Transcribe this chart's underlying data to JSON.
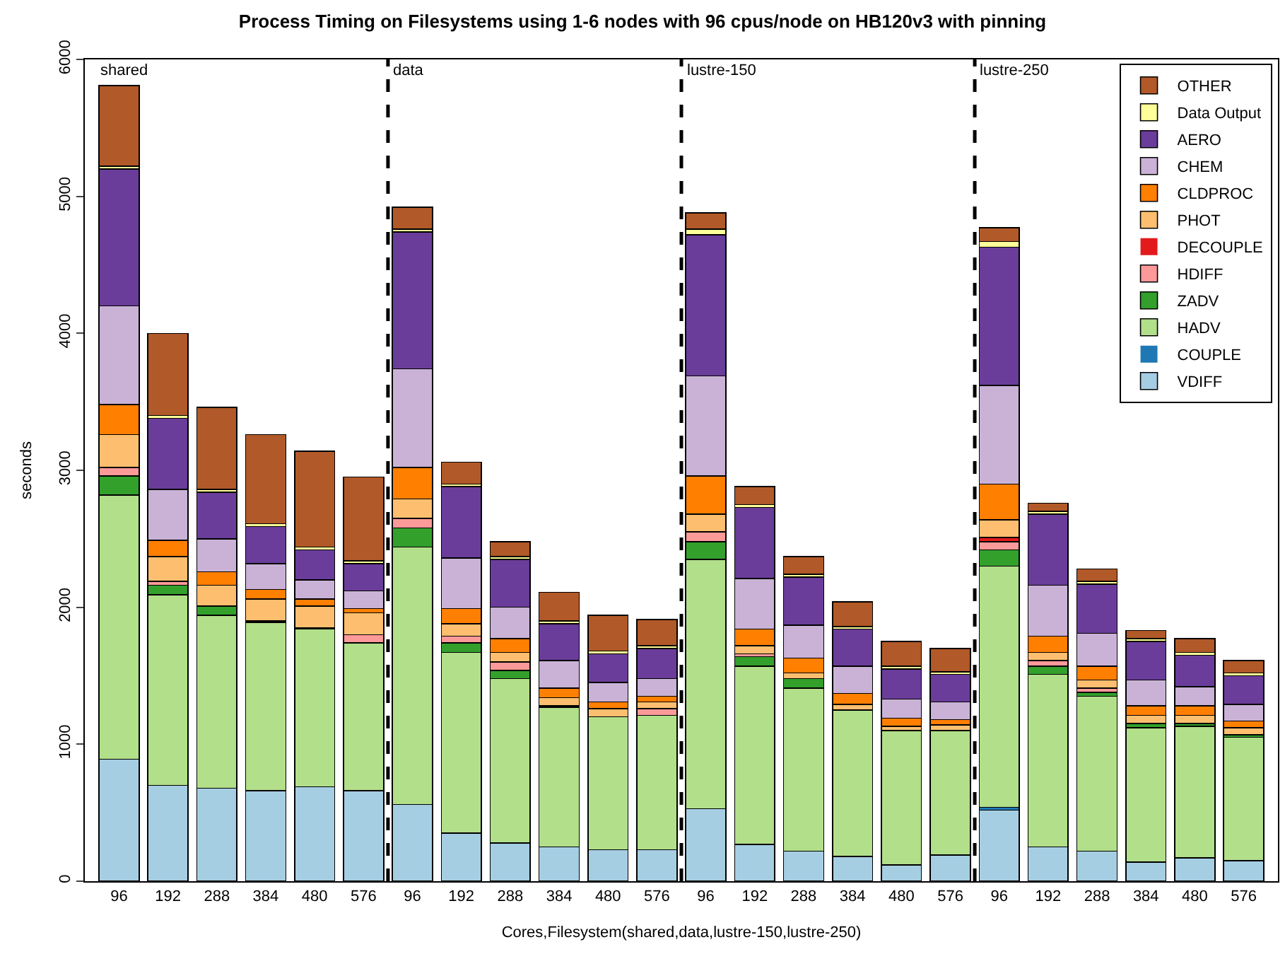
{
  "chart_data": {
    "type": "bar",
    "stacked": true,
    "title": "Process Timing on Filesystems using 1-6 nodes with 96 cpus/node on HB120v3 with pinning",
    "xlabel": "Cores,Filesystem(shared,data,lustre-150,lustre-250)",
    "ylabel": "seconds",
    "categories": [
      "96",
      "192",
      "288",
      "384",
      "480",
      "576",
      "96",
      "192",
      "288",
      "384",
      "480",
      "576",
      "96",
      "192",
      "288",
      "384",
      "480",
      "576",
      "96",
      "192",
      "288",
      "384",
      "480",
      "576"
    ],
    "ylim": [
      0,
      6000
    ],
    "yticks": [
      0,
      1000,
      2000,
      3000,
      4000,
      5000,
      6000
    ],
    "legend": "top right",
    "annotations": [
      "shared",
      "data",
      "lustre-150",
      "lustre-250"
    ],
    "series": [
      {
        "name": "VDIFF",
        "color": "#a6cee3",
        "values": [
          890,
          700,
          680,
          660,
          690,
          660,
          560,
          350,
          280,
          250,
          230,
          230,
          530,
          270,
          220,
          180,
          120,
          190,
          520,
          250,
          220,
          140,
          170,
          150
        ]
      },
      {
        "name": "COUPLE",
        "color": "#1f78b4",
        "values": [
          0,
          0,
          0,
          0,
          0,
          0,
          0,
          0,
          0,
          0,
          0,
          0,
          0,
          0,
          0,
          0,
          0,
          0,
          20,
          0,
          0,
          0,
          0,
          0
        ]
      },
      {
        "name": "HADV",
        "color": "#b2df8a",
        "values": [
          1930,
          1390,
          1260,
          1230,
          1150,
          1080,
          1880,
          1320,
          1200,
          1020,
          970,
          980,
          1820,
          1300,
          1190,
          1070,
          980,
          910,
          1760,
          1260,
          1130,
          980,
          960,
          900
        ]
      },
      {
        "name": "ZADV",
        "color": "#33a02c",
        "values": [
          140,
          70,
          70,
          10,
          10,
          0,
          140,
          70,
          60,
          10,
          0,
          0,
          130,
          70,
          70,
          0,
          0,
          0,
          120,
          60,
          30,
          30,
          20,
          20
        ]
      },
      {
        "name": "HDIFF",
        "color": "#fb9a99",
        "values": [
          60,
          30,
          0,
          0,
          0,
          60,
          70,
          50,
          60,
          0,
          0,
          50,
          70,
          20,
          0,
          0,
          0,
          0,
          60,
          40,
          30,
          0,
          0,
          0
        ]
      },
      {
        "name": "DECOUPLE",
        "color": "#e31a1c",
        "values": [
          0,
          0,
          0,
          0,
          0,
          0,
          0,
          0,
          0,
          0,
          0,
          0,
          0,
          0,
          0,
          0,
          0,
          0,
          30,
          0,
          0,
          0,
          0,
          0
        ]
      },
      {
        "name": "PHOT",
        "color": "#fdbf6f",
        "values": [
          240,
          180,
          150,
          160,
          160,
          160,
          140,
          90,
          70,
          60,
          60,
          50,
          130,
          60,
          40,
          40,
          30,
          40,
          130,
          60,
          60,
          60,
          60,
          50
        ]
      },
      {
        "name": "CLDPROC",
        "color": "#ff7f00",
        "values": [
          220,
          120,
          100,
          70,
          50,
          30,
          230,
          110,
          100,
          70,
          50,
          40,
          280,
          120,
          110,
          80,
          60,
          40,
          260,
          120,
          100,
          70,
          70,
          50
        ]
      },
      {
        "name": "CHEM",
        "color": "#cab2d6",
        "values": [
          720,
          370,
          240,
          190,
          140,
          130,
          720,
          370,
          230,
          200,
          140,
          130,
          730,
          370,
          240,
          200,
          140,
          130,
          720,
          370,
          240,
          190,
          140,
          120
        ]
      },
      {
        "name": "AERO",
        "color": "#6a3d9a",
        "values": [
          1000,
          520,
          340,
          270,
          220,
          200,
          1000,
          520,
          350,
          270,
          210,
          220,
          1030,
          520,
          350,
          270,
          220,
          200,
          1010,
          520,
          360,
          280,
          230,
          210
        ]
      },
      {
        "name": "Data Output",
        "color": "#ffff99",
        "values": [
          20,
          20,
          20,
          20,
          20,
          20,
          20,
          20,
          20,
          20,
          20,
          20,
          40,
          20,
          20,
          20,
          20,
          20,
          40,
          20,
          20,
          20,
          20,
          20
        ]
      },
      {
        "name": "OTHER",
        "color": "#b15928",
        "values": [
          590,
          600,
          600,
          650,
          700,
          610,
          160,
          160,
          110,
          210,
          260,
          190,
          120,
          130,
          130,
          180,
          180,
          170,
          100,
          60,
          90,
          60,
          100,
          90
        ]
      }
    ]
  }
}
